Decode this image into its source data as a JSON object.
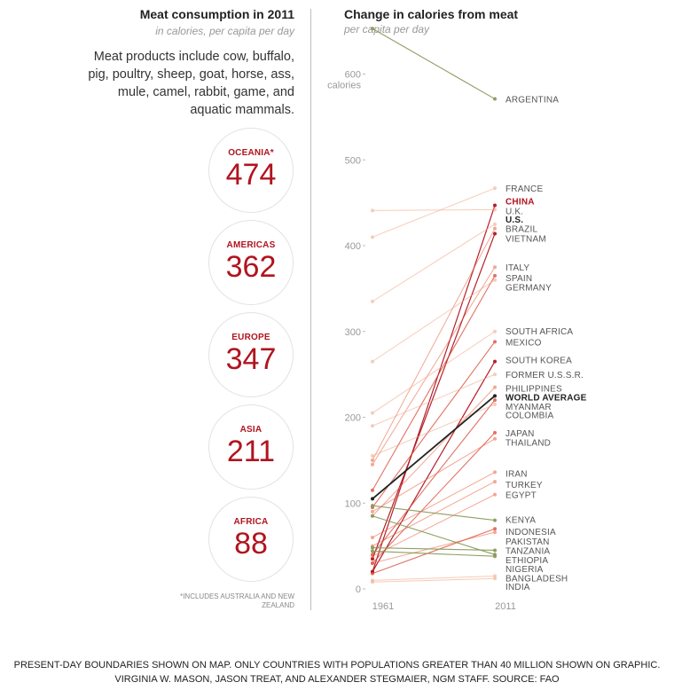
{
  "left": {
    "title": "Meat consumption in 2011",
    "subtitle": "in calories, per capita per day",
    "description": "Meat products include cow, buffalo, pig, poultry, sheep, goat, horse, ass, mule, camel, rabbit, game, and aquatic mammals.",
    "regions": [
      {
        "name": "OCEANIA*",
        "value": "474"
      },
      {
        "name": "AMERICAS",
        "value": "362"
      },
      {
        "name": "EUROPE",
        "value": "347"
      },
      {
        "name": "ASIA",
        "value": "211"
      },
      {
        "name": "AFRICA",
        "value": "88"
      }
    ],
    "footnote": "*INCLUDES AUSTRALIA AND NEW ZEALAND",
    "accent_color": "#b0141f"
  },
  "right": {
    "title": "Change in calories from meat",
    "subtitle": "per capita per day"
  },
  "source": "PRESENT-DAY BOUNDARIES SHOWN ON MAP. ONLY COUNTRIES WITH POPULATIONS GREATER THAN 40 MILLION SHOWN ON GRAPHIC. VIRGINIA W. MASON, JASON TREAT, AND ALEXANDER STEGMAIER, NGM STAFF. SOURCE: FAO",
  "chart_data": {
    "type": "line",
    "title": "Change in calories from meat",
    "subtitle": "per capita per day",
    "x": [
      "1961",
      "2011"
    ],
    "y_ticks": [
      0,
      100,
      200,
      300,
      400,
      500,
      600
    ],
    "y_unit_label": "calories",
    "ylim": [
      0,
      650
    ],
    "grid": false,
    "colors": {
      "increase": "#e8603c",
      "decrease": "#8a9a5b",
      "world": "#222222",
      "highlight": "#b0141f"
    },
    "series": [
      {
        "name": "ARGENTINA",
        "values": [
          653,
          571
        ]
      },
      {
        "name": "FRANCE",
        "values": [
          410,
          467
        ]
      },
      {
        "name": "CHINA",
        "values": [
          20,
          447
        ]
      },
      {
        "name": "U.K.",
        "values": [
          441,
          442
        ]
      },
      {
        "name": "U.S.",
        "values": [
          335,
          425
        ]
      },
      {
        "name": "BRAZIL",
        "values": [
          150,
          420
        ]
      },
      {
        "name": "VIETNAM",
        "values": [
          35,
          414
        ]
      },
      {
        "name": "ITALY",
        "values": [
          145,
          375
        ]
      },
      {
        "name": "SPAIN",
        "values": [
          115,
          365
        ]
      },
      {
        "name": "GERMANY",
        "values": [
          265,
          360
        ]
      },
      {
        "name": "SOUTH AFRICA",
        "values": [
          205,
          300
        ]
      },
      {
        "name": "MEXICO",
        "values": [
          95,
          288
        ]
      },
      {
        "name": "SOUTH KOREA",
        "values": [
          20,
          265
        ]
      },
      {
        "name": "FORMER U.S.S.R.",
        "values": [
          190,
          250
        ]
      },
      {
        "name": "PHILIPPINES",
        "values": [
          85,
          235
        ]
      },
      {
        "name": "WORLD AVERAGE",
        "values": [
          105,
          225
        ]
      },
      {
        "name": "MYANMAR",
        "values": [
          40,
          220
        ]
      },
      {
        "name": "COLOMBIA",
        "values": [
          155,
          215
        ]
      },
      {
        "name": "JAPAN",
        "values": [
          30,
          182
        ]
      },
      {
        "name": "THAILAND",
        "values": [
          90,
          175
        ]
      },
      {
        "name": "IRAN",
        "values": [
          60,
          136
        ]
      },
      {
        "name": "TURKEY",
        "values": [
          50,
          125
        ]
      },
      {
        "name": "EGYPT",
        "values": [
          38,
          110
        ]
      },
      {
        "name": "KENYA",
        "values": [
          97,
          80
        ]
      },
      {
        "name": "INDONESIA",
        "values": [
          18,
          70
        ]
      },
      {
        "name": "PAKISTAN",
        "values": [
          30,
          66
        ]
      },
      {
        "name": "TANZANIA",
        "values": [
          48,
          45
        ]
      },
      {
        "name": "ETHIOPIA",
        "values": [
          85,
          40
        ]
      },
      {
        "name": "NIGERIA",
        "values": [
          44,
          38
        ]
      },
      {
        "name": "BANGLADESH",
        "values": [
          10,
          15
        ]
      },
      {
        "name": "INDIA",
        "values": [
          8,
          12
        ]
      }
    ],
    "labels": [
      {
        "text": "ARGENTINA",
        "value": 571
      },
      {
        "text": "FRANCE",
        "value": 467
      },
      {
        "text": "CHINA",
        "value": 452,
        "style": "highlight"
      },
      {
        "text": "U.K.",
        "value": 441
      },
      {
        "text": "U.S.",
        "value": 431,
        "style": "bold"
      },
      {
        "text": "BRAZIL",
        "value": 420
      },
      {
        "text": "VIETNAM",
        "value": 409
      },
      {
        "text": "ITALY",
        "value": 375
      },
      {
        "text": "SPAIN",
        "value": 363
      },
      {
        "text": "GERMANY",
        "value": 352
      },
      {
        "text": "SOUTH AFRICA",
        "value": 301
      },
      {
        "text": "MEXICO",
        "value": 288
      },
      {
        "text": "SOUTH KOREA",
        "value": 267
      },
      {
        "text": "FORMER U.S.S.R.",
        "value": 250
      },
      {
        "text": "PHILIPPINES",
        "value": 234
      },
      {
        "text": "WORLD AVERAGE",
        "value": 224,
        "style": "bold"
      },
      {
        "text": "MYANMAR",
        "value": 213
      },
      {
        "text": "COLOMBIA",
        "value": 203
      },
      {
        "text": "JAPAN",
        "value": 182
      },
      {
        "text": "THAILAND",
        "value": 171
      },
      {
        "text": "IRAN",
        "value": 135
      },
      {
        "text": "TURKEY",
        "value": 122
      },
      {
        "text": "EGYPT",
        "value": 110
      },
      {
        "text": "KENYA",
        "value": 81
      },
      {
        "text": "INDONESIA",
        "value": 67
      },
      {
        "text": "PAKISTAN",
        "value": 56
      },
      {
        "text": "TANZANIA",
        "value": 45
      },
      {
        "text": "ETHIOPIA",
        "value": 34
      },
      {
        "text": "NIGERIA",
        "value": 24
      },
      {
        "text": "BANGLADESH",
        "value": 13
      },
      {
        "text": "INDIA",
        "value": 3
      }
    ]
  }
}
